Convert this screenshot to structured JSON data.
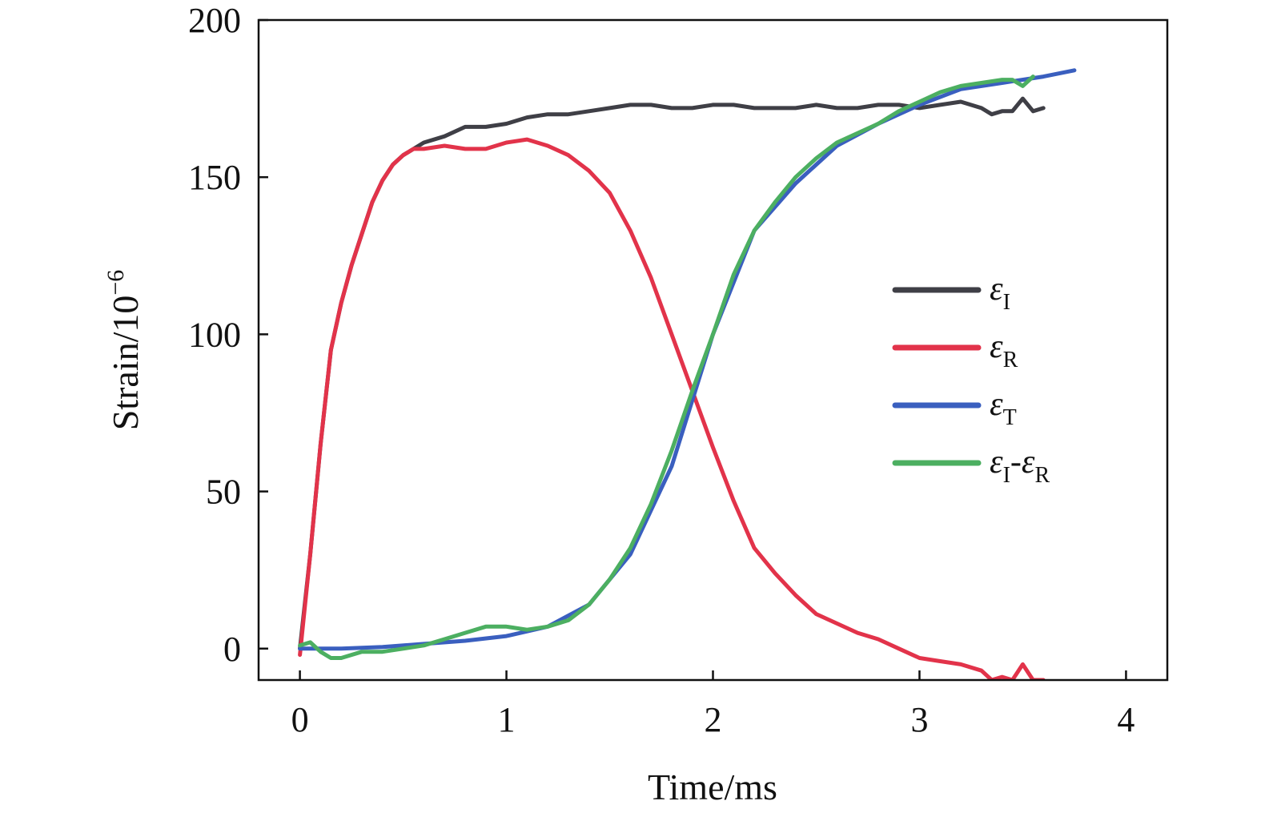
{
  "chart_data": {
    "type": "line",
    "xlabel": "Time/ms",
    "ylabel": "Strain/10",
    "ylabel_exp": "−6",
    "xlim": [
      -0.2,
      4.2
    ],
    "ylim": [
      -10,
      200
    ],
    "xticks": [
      0,
      1,
      2,
      3,
      4
    ],
    "yticks": [
      0,
      50,
      100,
      150,
      200
    ],
    "xtick_labels": [
      "0",
      "1",
      "2",
      "3",
      "4"
    ],
    "ytick_labels": [
      "0",
      "50",
      "100",
      "150",
      "200"
    ],
    "grid": false,
    "legend_position": "right",
    "series": [
      {
        "name": "ε_I",
        "legend_main": "ε",
        "legend_sub": "I",
        "color": "#3f3f46",
        "x": [
          0,
          0.05,
          0.1,
          0.15,
          0.2,
          0.25,
          0.3,
          0.35,
          0.4,
          0.45,
          0.5,
          0.55,
          0.6,
          0.7,
          0.8,
          0.9,
          1.0,
          1.1,
          1.2,
          1.3,
          1.4,
          1.5,
          1.6,
          1.7,
          1.8,
          1.9,
          2.0,
          2.1,
          2.2,
          2.3,
          2.4,
          2.5,
          2.6,
          2.7,
          2.8,
          2.9,
          3.0,
          3.1,
          3.2,
          3.3,
          3.35,
          3.4,
          3.45,
          3.5,
          3.55,
          3.6
        ],
        "y": [
          0,
          30,
          65,
          95,
          110,
          122,
          132,
          142,
          149,
          154,
          157,
          159,
          161,
          163,
          166,
          166,
          167,
          169,
          170,
          170,
          171,
          172,
          173,
          173,
          172,
          172,
          173,
          173,
          172,
          172,
          172,
          173,
          172,
          172,
          173,
          173,
          172,
          173,
          174,
          172,
          170,
          171,
          171,
          175,
          171,
          172
        ]
      },
      {
        "name": "ε_R",
        "legend_main": "ε",
        "legend_sub": "R",
        "color": "#e2334a",
        "x": [
          0,
          0.05,
          0.1,
          0.15,
          0.2,
          0.25,
          0.3,
          0.35,
          0.4,
          0.45,
          0.5,
          0.55,
          0.6,
          0.7,
          0.8,
          0.9,
          1.0,
          1.1,
          1.2,
          1.3,
          1.4,
          1.5,
          1.6,
          1.7,
          1.8,
          1.9,
          2.0,
          2.1,
          2.2,
          2.3,
          2.4,
          2.5,
          2.6,
          2.7,
          2.8,
          2.9,
          3.0,
          3.1,
          3.2,
          3.3,
          3.35,
          3.4,
          3.45,
          3.5,
          3.55,
          3.6
        ],
        "y": [
          -2,
          30,
          65,
          95,
          110,
          122,
          132,
          142,
          149,
          154,
          157,
          159,
          159,
          160,
          159,
          159,
          161,
          162,
          160,
          157,
          152,
          145,
          133,
          118,
          100,
          82,
          64,
          47,
          32,
          24,
          17,
          11,
          8,
          5,
          3,
          0,
          -3,
          -4,
          -5,
          -7,
          -10,
          -9,
          -10,
          -5,
          -10,
          -10
        ]
      },
      {
        "name": "ε_T",
        "legend_main": "ε",
        "legend_sub": "T",
        "color": "#3a5fbf",
        "x": [
          0,
          0.2,
          0.4,
          0.6,
          0.8,
          1.0,
          1.2,
          1.4,
          1.6,
          1.8,
          2.0,
          2.2,
          2.4,
          2.6,
          2.8,
          3.0,
          3.2,
          3.4,
          3.6,
          3.75
        ],
        "y": [
          0,
          0,
          0.5,
          1.5,
          2.5,
          4,
          7,
          14,
          30,
          58,
          100,
          133,
          148,
          160,
          167,
          173,
          178,
          180,
          182,
          184
        ]
      },
      {
        "name": "ε_I-ε_R",
        "legend_main": "ε",
        "legend_sub": "I",
        "legend_mid": "-ε",
        "legend_sub2": "R",
        "color": "#4caf61",
        "x": [
          0,
          0.05,
          0.1,
          0.15,
          0.2,
          0.3,
          0.4,
          0.5,
          0.6,
          0.7,
          0.8,
          0.9,
          1.0,
          1.1,
          1.2,
          1.3,
          1.4,
          1.5,
          1.6,
          1.7,
          1.8,
          1.9,
          2.0,
          2.1,
          2.2,
          2.3,
          2.4,
          2.5,
          2.6,
          2.7,
          2.8,
          2.9,
          3.0,
          3.1,
          3.2,
          3.3,
          3.4,
          3.45,
          3.5,
          3.55
        ],
        "y": [
          1,
          2,
          -1,
          -3,
          -3,
          -1,
          -1,
          0,
          1,
          3,
          5,
          7,
          7,
          6,
          7,
          9,
          14,
          22,
          32,
          46,
          63,
          82,
          100,
          119,
          133,
          142,
          150,
          156,
          161,
          164,
          167,
          171,
          174,
          177,
          179,
          180,
          181,
          181,
          179,
          182
        ]
      }
    ]
  }
}
